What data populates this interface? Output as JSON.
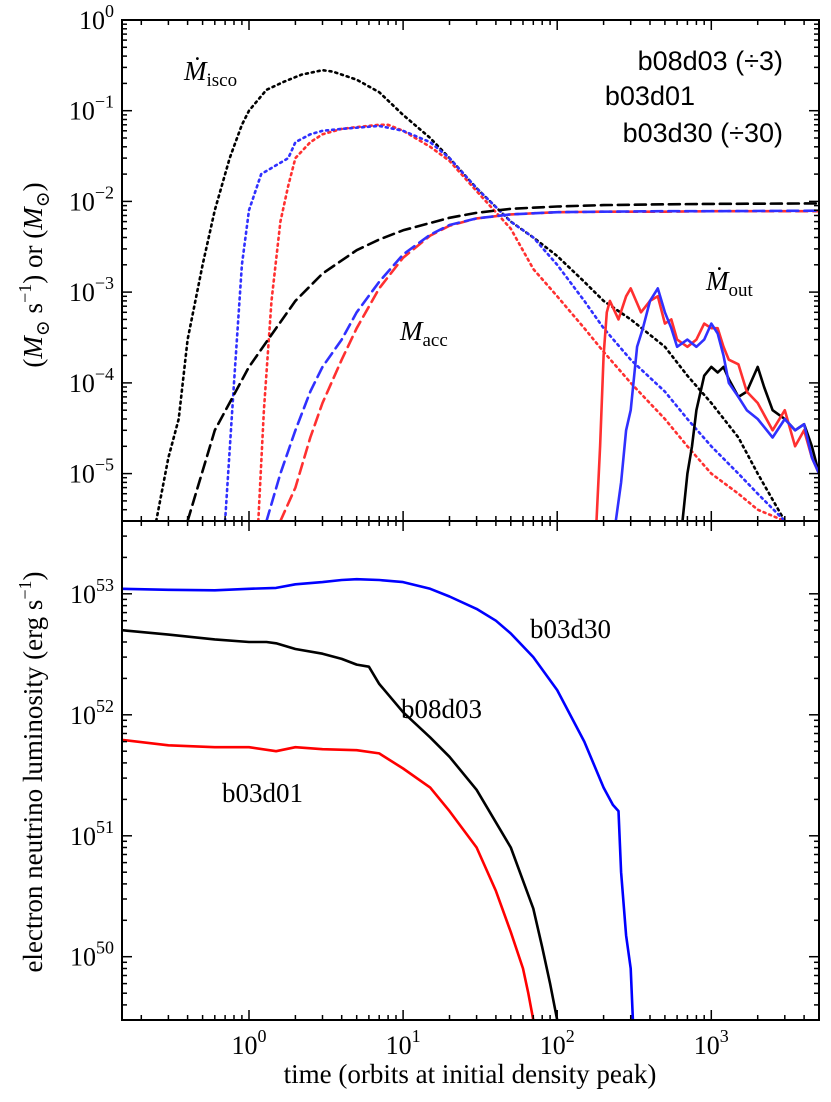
{
  "chart_data": [
    {
      "type": "line",
      "scale": {
        "x": "log",
        "y": "log"
      },
      "xlim": [
        0.15,
        5000
      ],
      "ylim": [
        3e-06,
        1
      ],
      "ylabel": "(M⊙ s⁻¹) or (M⊙)",
      "y_ticks": [
        {
          "value": 1,
          "base": "10",
          "exp": "0"
        },
        {
          "value": 0.1,
          "base": "10",
          "exp": "−1"
        },
        {
          "value": 0.01,
          "base": "10",
          "exp": "−2"
        },
        {
          "value": 0.001,
          "base": "10",
          "exp": "−3"
        },
        {
          "value": 0.0001,
          "base": "10",
          "exp": "−4"
        },
        {
          "value": 1e-05,
          "base": "10",
          "exp": "−5"
        }
      ],
      "legend": {
        "position": "top-right",
        "entries": [
          {
            "label": "b08d03 (÷3)",
            "color": "#000000"
          },
          {
            "label": "b03d01",
            "color": "#ff0000"
          },
          {
            "label": "b03d30 (÷30)",
            "color": "#0000ff"
          }
        ]
      },
      "annotations": [
        {
          "base": "Ṁ",
          "sub": "isco",
          "x": 0.55,
          "y": 0.28
        },
        {
          "base": "M",
          "sub": "acc",
          "x": 15,
          "y": 0.00045
        },
        {
          "base": "Ṁ",
          "sub": "out",
          "x": 1300,
          "y": 0.0013
        }
      ],
      "series": [
        {
          "model": "b08d03",
          "quantity": "Ṁisco",
          "style": "dotted",
          "color": "#000000",
          "x": [
            0.25,
            0.3,
            0.35,
            0.4,
            0.5,
            0.6,
            0.75,
            0.9,
            1.0,
            1.3,
            1.7,
            2.2,
            3.0,
            3.5,
            4.0,
            5,
            7,
            10,
            15,
            20,
            30,
            50,
            70,
            100,
            150,
            200,
            300,
            500,
            700,
            1000,
            1500,
            2000,
            3000
          ],
          "y": [
            3e-06,
            1.5e-05,
            4e-05,
            0.0003,
            0.002,
            0.008,
            0.03,
            0.07,
            0.1,
            0.17,
            0.21,
            0.25,
            0.28,
            0.27,
            0.25,
            0.22,
            0.16,
            0.09,
            0.05,
            0.03,
            0.014,
            0.006,
            0.004,
            0.0025,
            0.0013,
            0.0008,
            0.0005,
            0.00025,
            0.00012,
            6e-05,
            2.5e-05,
            1e-05,
            3e-06
          ]
        },
        {
          "model": "b03d01",
          "quantity": "Ṁisco",
          "style": "dotted",
          "color": "#ff3030",
          "x": [
            1.15,
            1.25,
            1.4,
            1.6,
            1.8,
            2.0,
            2.5,
            3.0,
            4.0,
            5.0,
            7.0,
            8.0,
            10,
            15,
            20,
            30,
            50,
            70,
            100,
            150,
            200,
            300,
            500,
            700,
            1000,
            1500,
            2000,
            3000
          ],
          "y": [
            3e-06,
            5e-05,
            0.0008,
            0.006,
            0.015,
            0.03,
            0.045,
            0.055,
            0.063,
            0.066,
            0.07,
            0.07,
            0.06,
            0.04,
            0.028,
            0.013,
            0.005,
            0.0018,
            0.0009,
            0.0004,
            0.00022,
            0.0001,
            4e-05,
            2e-05,
            1e-05,
            6e-06,
            4e-06,
            3e-06
          ]
        },
        {
          "model": "b03d30",
          "quantity": "Ṁisco",
          "style": "dotted",
          "color": "#3030ff",
          "x": [
            0.7,
            0.8,
            0.9,
            1.0,
            1.2,
            1.5,
            1.8,
            2.0,
            2.5,
            3.0,
            4.0,
            5.0,
            7.0,
            10,
            15,
            20,
            30,
            50,
            70,
            100,
            150,
            200,
            300,
            500,
            700,
            1000,
            1500,
            2000,
            3000
          ],
          "y": [
            3e-06,
            0.0001,
            0.002,
            0.008,
            0.02,
            0.025,
            0.03,
            0.045,
            0.055,
            0.06,
            0.063,
            0.065,
            0.068,
            0.06,
            0.045,
            0.03,
            0.014,
            0.006,
            0.004,
            0.002,
            0.0008,
            0.0004,
            0.00018,
            8e-05,
            4e-05,
            2e-05,
            1e-05,
            6e-06,
            3e-06
          ]
        },
        {
          "model": "b08d03",
          "quantity": "Macc",
          "style": "dashed",
          "color": "#000000",
          "x": [
            0.4,
            0.6,
            1.0,
            1.5,
            2.0,
            3.0,
            5.0,
            7.0,
            10,
            20,
            30,
            50,
            100,
            200,
            500,
            1000,
            5000
          ],
          "y": [
            3e-06,
            3e-05,
            0.00015,
            0.0004,
            0.0008,
            0.0016,
            0.0029,
            0.0038,
            0.0048,
            0.0066,
            0.0075,
            0.0083,
            0.0088,
            0.0091,
            0.0093,
            0.0094,
            0.0095
          ]
        },
        {
          "model": "b03d01",
          "quantity": "Macc",
          "style": "dashed",
          "color": "#ff3030",
          "x": [
            1.6,
            2.0,
            2.5,
            3.0,
            4.0,
            5.0,
            7.0,
            10,
            15,
            20,
            30,
            50,
            70,
            100,
            200,
            500,
            1000,
            5000
          ],
          "y": [
            3e-06,
            7e-06,
            2.5e-05,
            6e-05,
            0.00018,
            0.0004,
            0.0011,
            0.0024,
            0.0042,
            0.0054,
            0.0065,
            0.0072,
            0.0074,
            0.0076,
            0.0077,
            0.0077,
            0.0078,
            0.0078
          ]
        },
        {
          "model": "b03d30",
          "quantity": "Macc",
          "style": "dashed",
          "color": "#3030ff",
          "x": [
            1.3,
            1.6,
            2.0,
            2.5,
            3.0,
            4.0,
            5.0,
            7.0,
            10,
            15,
            20,
            30,
            50,
            70,
            100,
            200,
            500,
            1000,
            5000
          ],
          "y": [
            3e-06,
            1e-05,
            3e-05,
            8e-05,
            0.00015,
            0.0003,
            0.0006,
            0.0013,
            0.0026,
            0.0043,
            0.0055,
            0.0065,
            0.0072,
            0.0074,
            0.0076,
            0.0077,
            0.0078,
            0.0078,
            0.0079
          ]
        },
        {
          "model": "b08d03",
          "quantity": "Ṁout",
          "style": "solid",
          "color": "#000000",
          "x": [
            650,
            700,
            750,
            800,
            900,
            1000,
            1100,
            1200,
            1300,
            1500,
            1700,
            2000,
            2200,
            2500,
            3000,
            3500,
            4000,
            4500,
            5000
          ],
          "y": [
            3e-06,
            1e-05,
            2e-05,
            5e-05,
            0.00012,
            0.00015,
            0.00013,
            0.00015,
            0.00011,
            7e-05,
            8e-05,
            0.00015,
            9e-05,
            5e-05,
            4e-05,
            3e-05,
            3.5e-05,
            2e-05,
            1e-05
          ]
        },
        {
          "model": "b03d01",
          "quantity": "Ṁout",
          "style": "solid",
          "color": "#ff3030",
          "x": [
            180,
            190,
            200,
            210,
            220,
            250,
            280,
            300,
            350,
            400,
            450,
            500,
            550,
            600,
            700,
            800,
            900,
            1000,
            1100,
            1200,
            1300,
            1500,
            1700,
            2000,
            2500,
            3000,
            3500,
            4000,
            4500,
            5000
          ],
          "y": [
            3e-06,
            2e-05,
            0.0002,
            0.0006,
            0.0008,
            0.0005,
            0.0009,
            0.0011,
            0.0006,
            0.0008,
            0.0009,
            0.00045,
            0.0005,
            0.0003,
            0.00025,
            0.0003,
            0.00045,
            0.0004,
            0.0004,
            0.00025,
            0.00018,
            0.00016,
            8e-05,
            6e-05,
            3e-05,
            5e-05,
            2e-05,
            3e-05,
            1.5e-05,
            1e-05
          ]
        },
        {
          "model": "b03d30",
          "quantity": "Ṁout",
          "style": "solid",
          "color": "#3030ff",
          "x": [
            240,
            260,
            280,
            300,
            330,
            360,
            400,
            450,
            500,
            550,
            600,
            700,
            800,
            900,
            1000,
            1100,
            1200,
            1300,
            1500,
            1700,
            2000,
            2500,
            3000,
            3500,
            4000,
            4500,
            5000
          ],
          "y": [
            3e-06,
            8e-06,
            3e-05,
            5e-05,
            0.00025,
            0.0004,
            0.0008,
            0.0011,
            0.0006,
            0.0004,
            0.00025,
            0.0003,
            0.00025,
            0.0003,
            0.00045,
            0.00035,
            0.0002,
            0.0001,
            7e-05,
            5e-05,
            4e-05,
            2.5e-05,
            4e-05,
            3e-05,
            3.5e-05,
            1.5e-05,
            1e-05
          ]
        }
      ]
    },
    {
      "type": "line",
      "scale": {
        "x": "log",
        "y": "log"
      },
      "xlim": [
        0.15,
        5000
      ],
      "ylim": [
        3e+49,
        4e+53
      ],
      "xlabel": "time (orbits at initial density peak)",
      "ylabel": "electron neutrino luminosity (erg s⁻¹)",
      "x_ticks": [
        {
          "value": 1,
          "base": "10",
          "exp": "0"
        },
        {
          "value": 10,
          "base": "10",
          "exp": "1"
        },
        {
          "value": 100,
          "base": "10",
          "exp": "2"
        },
        {
          "value": 1000,
          "base": "10",
          "exp": "3"
        }
      ],
      "y_ticks": [
        {
          "value": 1e+50,
          "base": "10",
          "exp": "50"
        },
        {
          "value": 1e+51,
          "base": "10",
          "exp": "51"
        },
        {
          "value": 1e+52,
          "base": "10",
          "exp": "52"
        },
        {
          "value": 1e+53,
          "base": "10",
          "exp": "53"
        }
      ],
      "labels": [
        {
          "text": "b03d30",
          "x": 30,
          "y": 5.2e+52,
          "color": "#0000ff"
        },
        {
          "text": "b08d03",
          "x": 10,
          "y": 1.05e+52,
          "color": "#000000"
        },
        {
          "text": "b03d01",
          "x": 0.8,
          "y": 2.1e+51,
          "color": "#ff0000"
        }
      ],
      "series": [
        {
          "name": "b03d30",
          "color": "#0000ff",
          "x": [
            0.15,
            0.3,
            0.6,
            1.0,
            1.5,
            2.0,
            3.0,
            4.0,
            5.0,
            7.0,
            10,
            15,
            20,
            30,
            40,
            50,
            70,
            100,
            150,
            200,
            230,
            250,
            260,
            280,
            300,
            310
          ],
          "y": [
            1.1e+53,
            1.08e+53,
            1.07e+53,
            1.1e+53,
            1.12e+53,
            1.2e+53,
            1.25e+53,
            1.3e+53,
            1.32e+53,
            1.3e+53,
            1.25e+53,
            1.1e+53,
            9.5e+52,
            7.5e+52,
            6e+52,
            4.7e+52,
            3e+52,
            1.6e+52,
            6e+51,
            2.5e+51,
            1.8e+51,
            1.6e+51,
            5e+50,
            1.5e+50,
            8e+49,
            3e+49
          ]
        },
        {
          "name": "b08d03",
          "color": "#000000",
          "x": [
            0.15,
            0.3,
            0.6,
            1.0,
            1.3,
            1.5,
            2.0,
            3.0,
            4.0,
            5.0,
            6.0,
            7.0,
            10,
            15,
            20,
            30,
            50,
            70,
            80,
            90,
            100
          ],
          "y": [
            5e+52,
            4.6e+52,
            4.2e+52,
            4e+52,
            4e+52,
            3.9e+52,
            3.5e+52,
            3.2e+52,
            2.9e+52,
            2.6e+52,
            2.5e+52,
            1.8e+52,
            1.05e+52,
            6.5e+51,
            4.5e+51,
            2.4e+51,
            8e+50,
            2.5e+50,
            1.2e+50,
            6e+49,
            3e+49
          ]
        },
        {
          "name": "b03d01",
          "color": "#ff0000",
          "x": [
            0.15,
            0.3,
            0.6,
            1.0,
            1.5,
            2.0,
            3.0,
            5.0,
            7.0,
            10,
            15,
            20,
            30,
            40,
            50,
            60,
            65,
            70
          ],
          "y": [
            6.2e+51,
            5.6e+51,
            5.4e+51,
            5.4e+51,
            5e+51,
            5.4e+51,
            5.2e+51,
            5.1e+51,
            4.8e+51,
            3.6e+51,
            2.5e+51,
            1.6e+51,
            8e+50,
            3.5e+50,
            1.6e+50,
            8e+49,
            5e+49,
            3e+49
          ]
        }
      ]
    }
  ]
}
